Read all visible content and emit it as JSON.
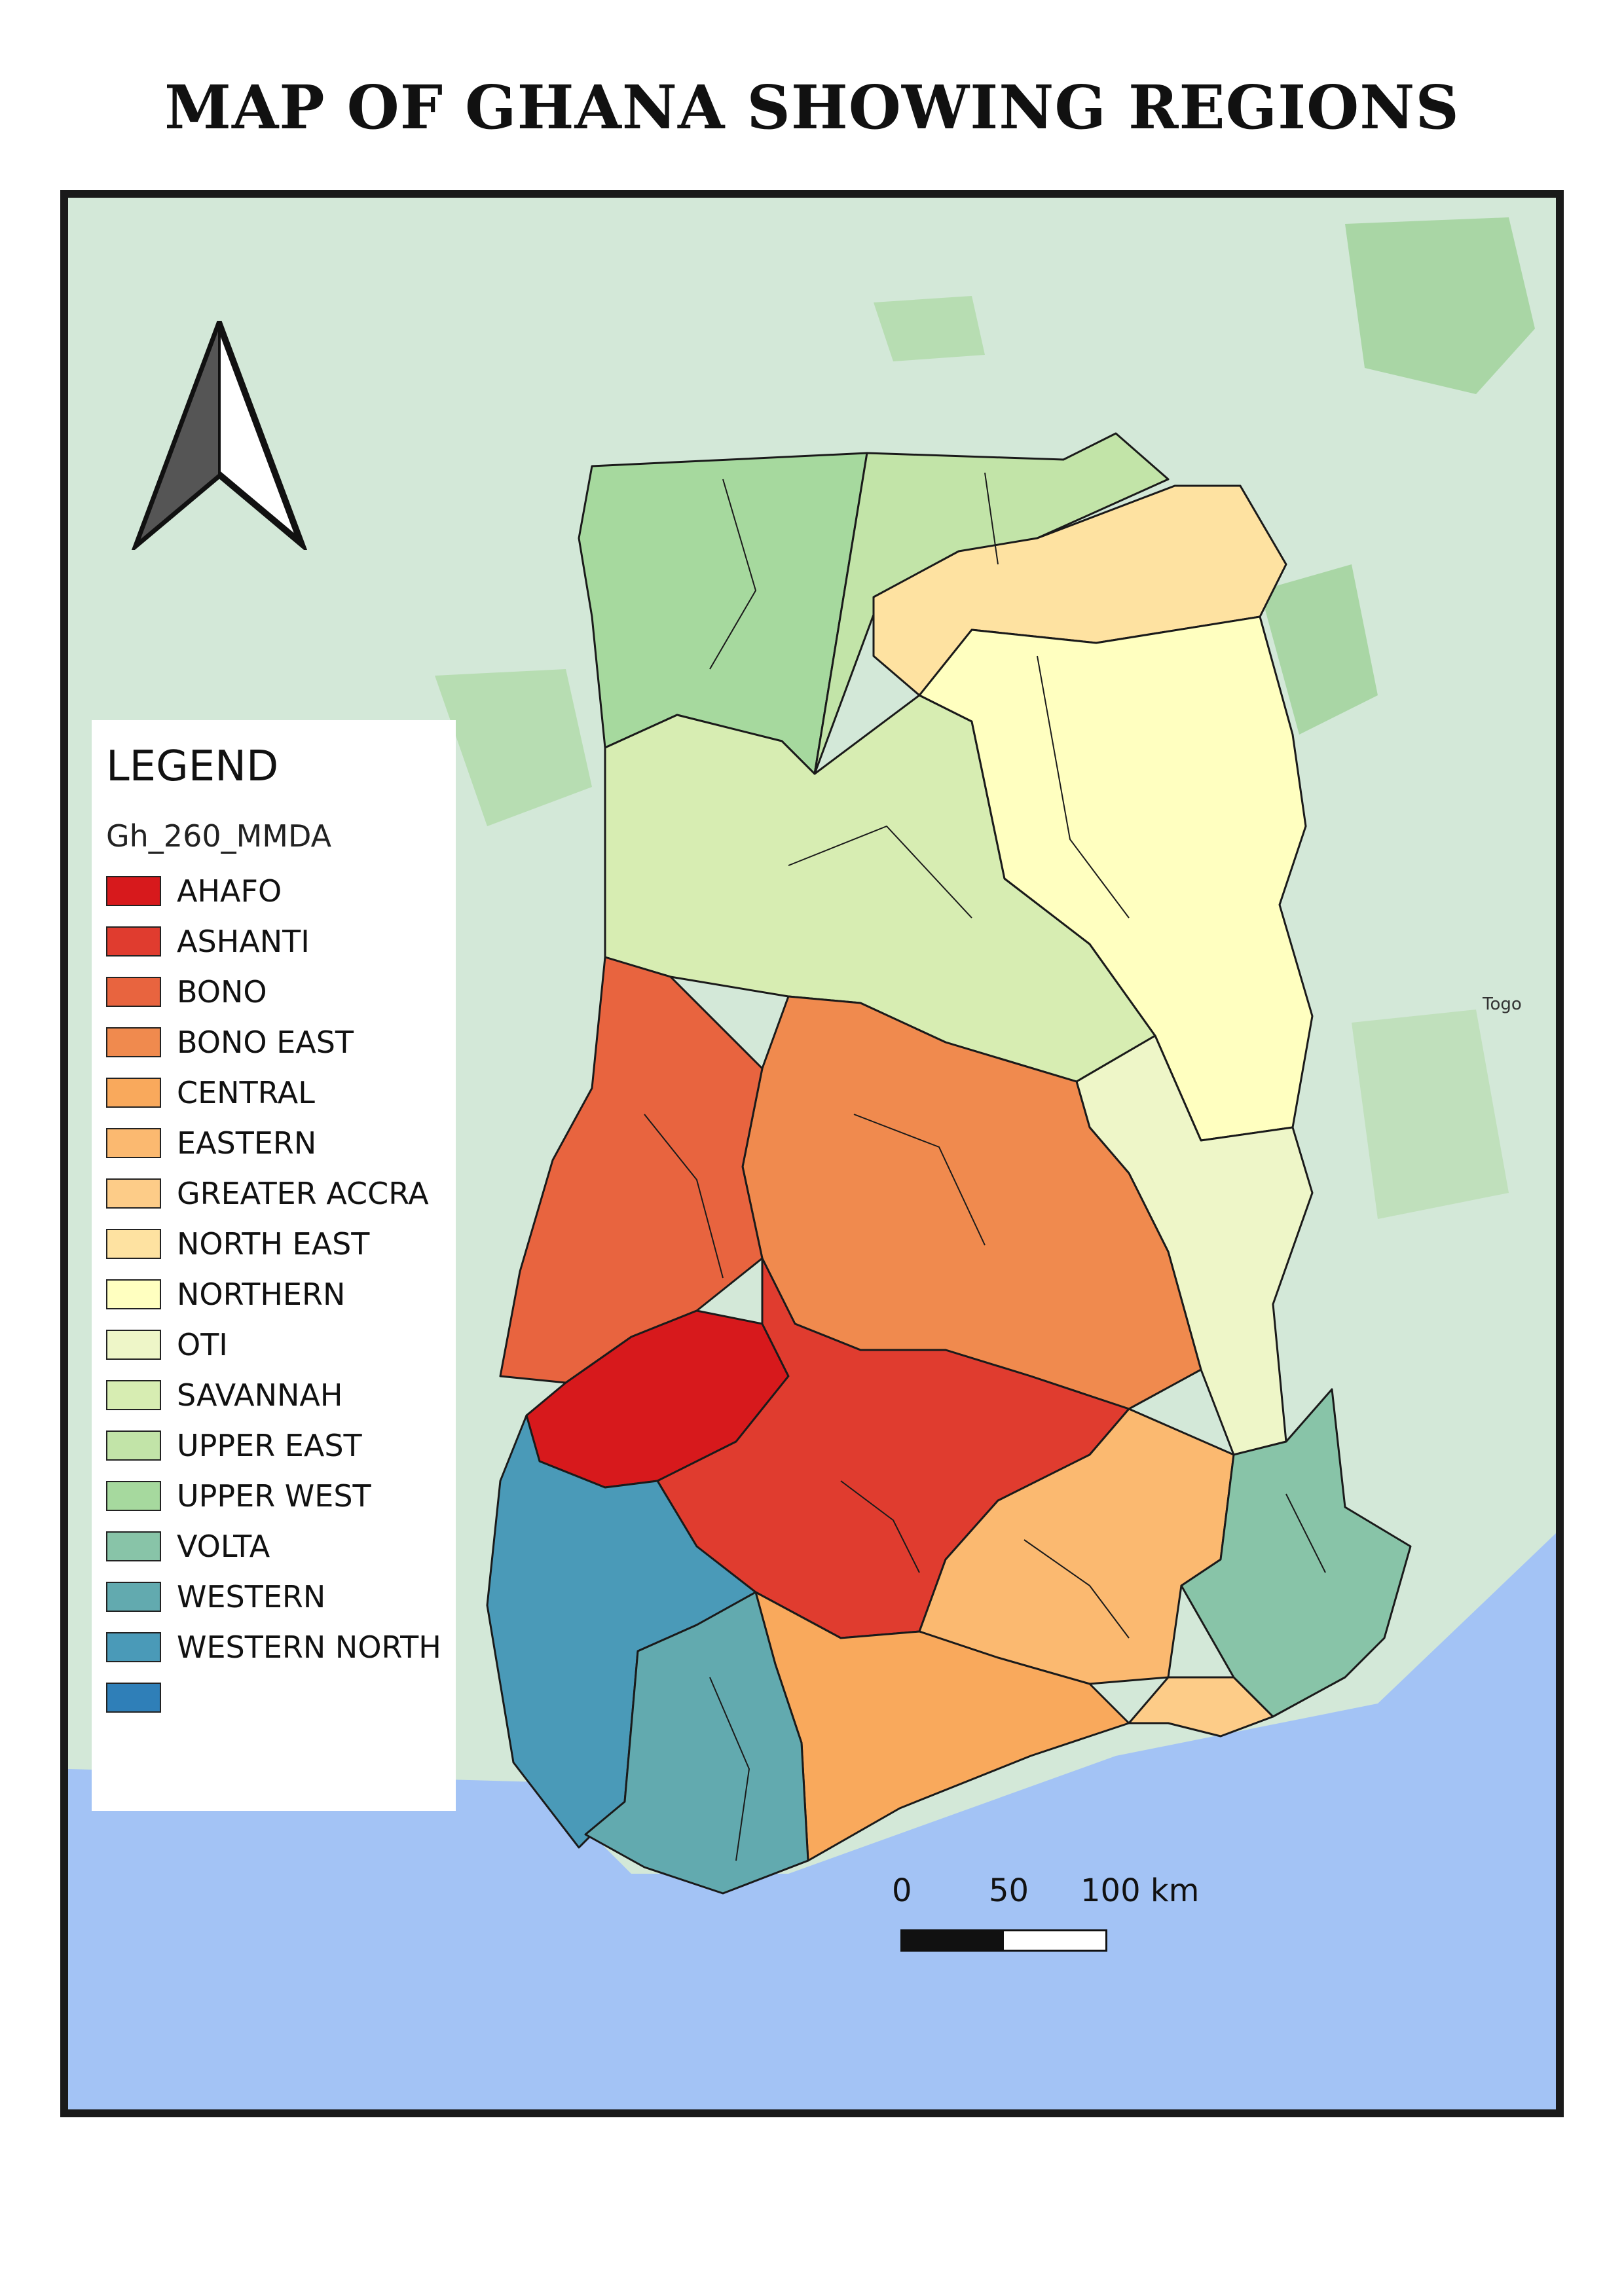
{
  "title": "MAP OF GHANA SHOWING REGIONS",
  "legend": {
    "title": "LEGEND",
    "layer": "Gh_260_MMDA",
    "items": [
      {
        "label": "AHAFO",
        "color": "#d7191c"
      },
      {
        "label": "ASHANTI",
        "color": "#e03c2f"
      },
      {
        "label": "BONO",
        "color": "#e8643f"
      },
      {
        "label": "BONO EAST",
        "color": "#f08a4e"
      },
      {
        "label": "CENTRAL",
        "color": "#f9a95c"
      },
      {
        "label": "EASTERN",
        "color": "#fbb970"
      },
      {
        "label": "GREATER ACCRA",
        "color": "#fdcc88"
      },
      {
        "label": "NORTH EAST",
        "color": "#fee2a1"
      },
      {
        "label": "NORTHERN",
        "color": "#ffffc0"
      },
      {
        "label": "OTI",
        "color": "#eef6c8"
      },
      {
        "label": "SAVANNAH",
        "color": "#d7edb2"
      },
      {
        "label": "UPPER EAST",
        "color": "#c2e4a8"
      },
      {
        "label": "UPPER WEST",
        "color": "#a6d99e"
      },
      {
        "label": "VOLTA",
        "color": "#88c4a8"
      },
      {
        "label": "WESTERN",
        "color": "#62aaaf"
      },
      {
        "label": "WESTERN NORTH",
        "color": "#4a9ab8"
      },
      {
        "label": "",
        "color": "#2f7fb8"
      }
    ]
  },
  "scale_bar": {
    "labels": [
      "0",
      "50",
      "100 km"
    ]
  },
  "map_labels": {
    "country": "Togo"
  },
  "colors": {
    "sea": "#a3c3f5",
    "land_background": "#cfe6d6",
    "forest": "#a8d8a8",
    "border": "#1a1a1a"
  }
}
